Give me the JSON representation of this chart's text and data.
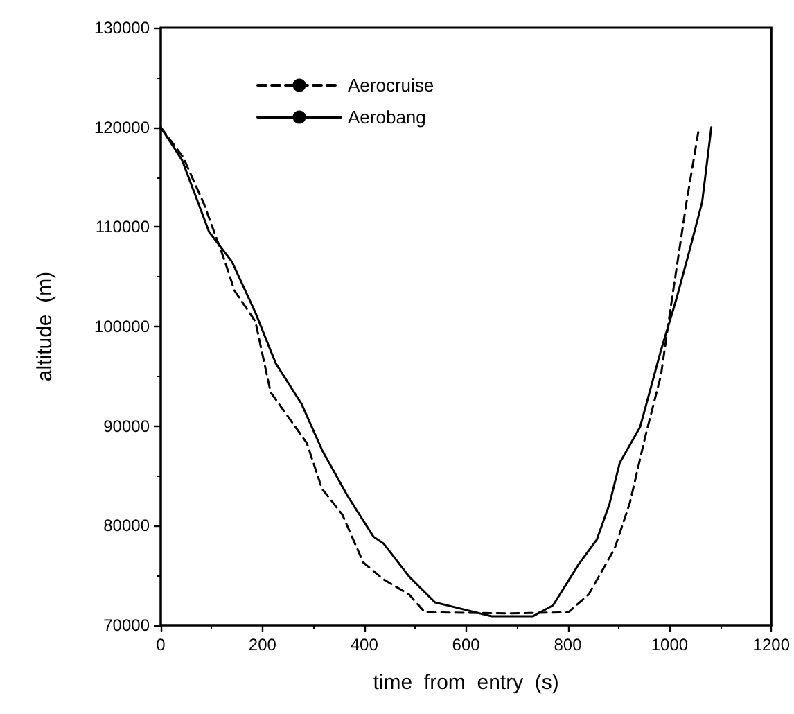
{
  "chart_data": {
    "type": "line",
    "xlabel": "time  from  entry  (s)",
    "ylabel": "altitude  (m)",
    "xlim": [
      0,
      1200
    ],
    "xticks": [
      0,
      200,
      400,
      600,
      800,
      1000,
      1200
    ],
    "ylim": [
      70000,
      130000
    ],
    "yticks": [
      70000,
      80000,
      90000,
      100000,
      110000,
      120000,
      130000
    ],
    "grid": false,
    "legend": "top",
    "marker": "none",
    "series": [
      {
        "name": "Aerocruise",
        "color": "#000000",
        "line_style": "dashed",
        "x": [
          0,
          44,
          85,
          125,
          145,
          186,
          216,
          287,
          317,
          357,
          398,
          438,
          488,
          519,
          690,
          801,
          841,
          892,
          922,
          952,
          983,
          1003,
          1033,
          1058
        ],
        "values": [
          120000,
          117000,
          112300,
          106700,
          103600,
          100500,
          93400,
          88300,
          83700,
          81100,
          76300,
          74600,
          73100,
          71300,
          71200,
          71300,
          73100,
          77700,
          82300,
          88900,
          95100,
          102200,
          112400,
          120000
        ]
      },
      {
        "name": "Aerobang",
        "color": "#000000",
        "line_style": "solid",
        "x": [
          0,
          42,
          95,
          140,
          186,
          226,
          277,
          317,
          367,
          418,
          438,
          488,
          539,
          579,
          650,
          731,
          771,
          821,
          857,
          882,
          902,
          942,
          983,
          1013,
          1038,
          1064,
          1082
        ],
        "values": [
          120000,
          116700,
          109500,
          106500,
          101400,
          96300,
          92200,
          87600,
          83000,
          78900,
          78200,
          74900,
          72300,
          71800,
          70900,
          70900,
          72000,
          76100,
          78600,
          82200,
          86300,
          89900,
          97600,
          102700,
          107400,
          112500,
          120000
        ]
      }
    ]
  }
}
